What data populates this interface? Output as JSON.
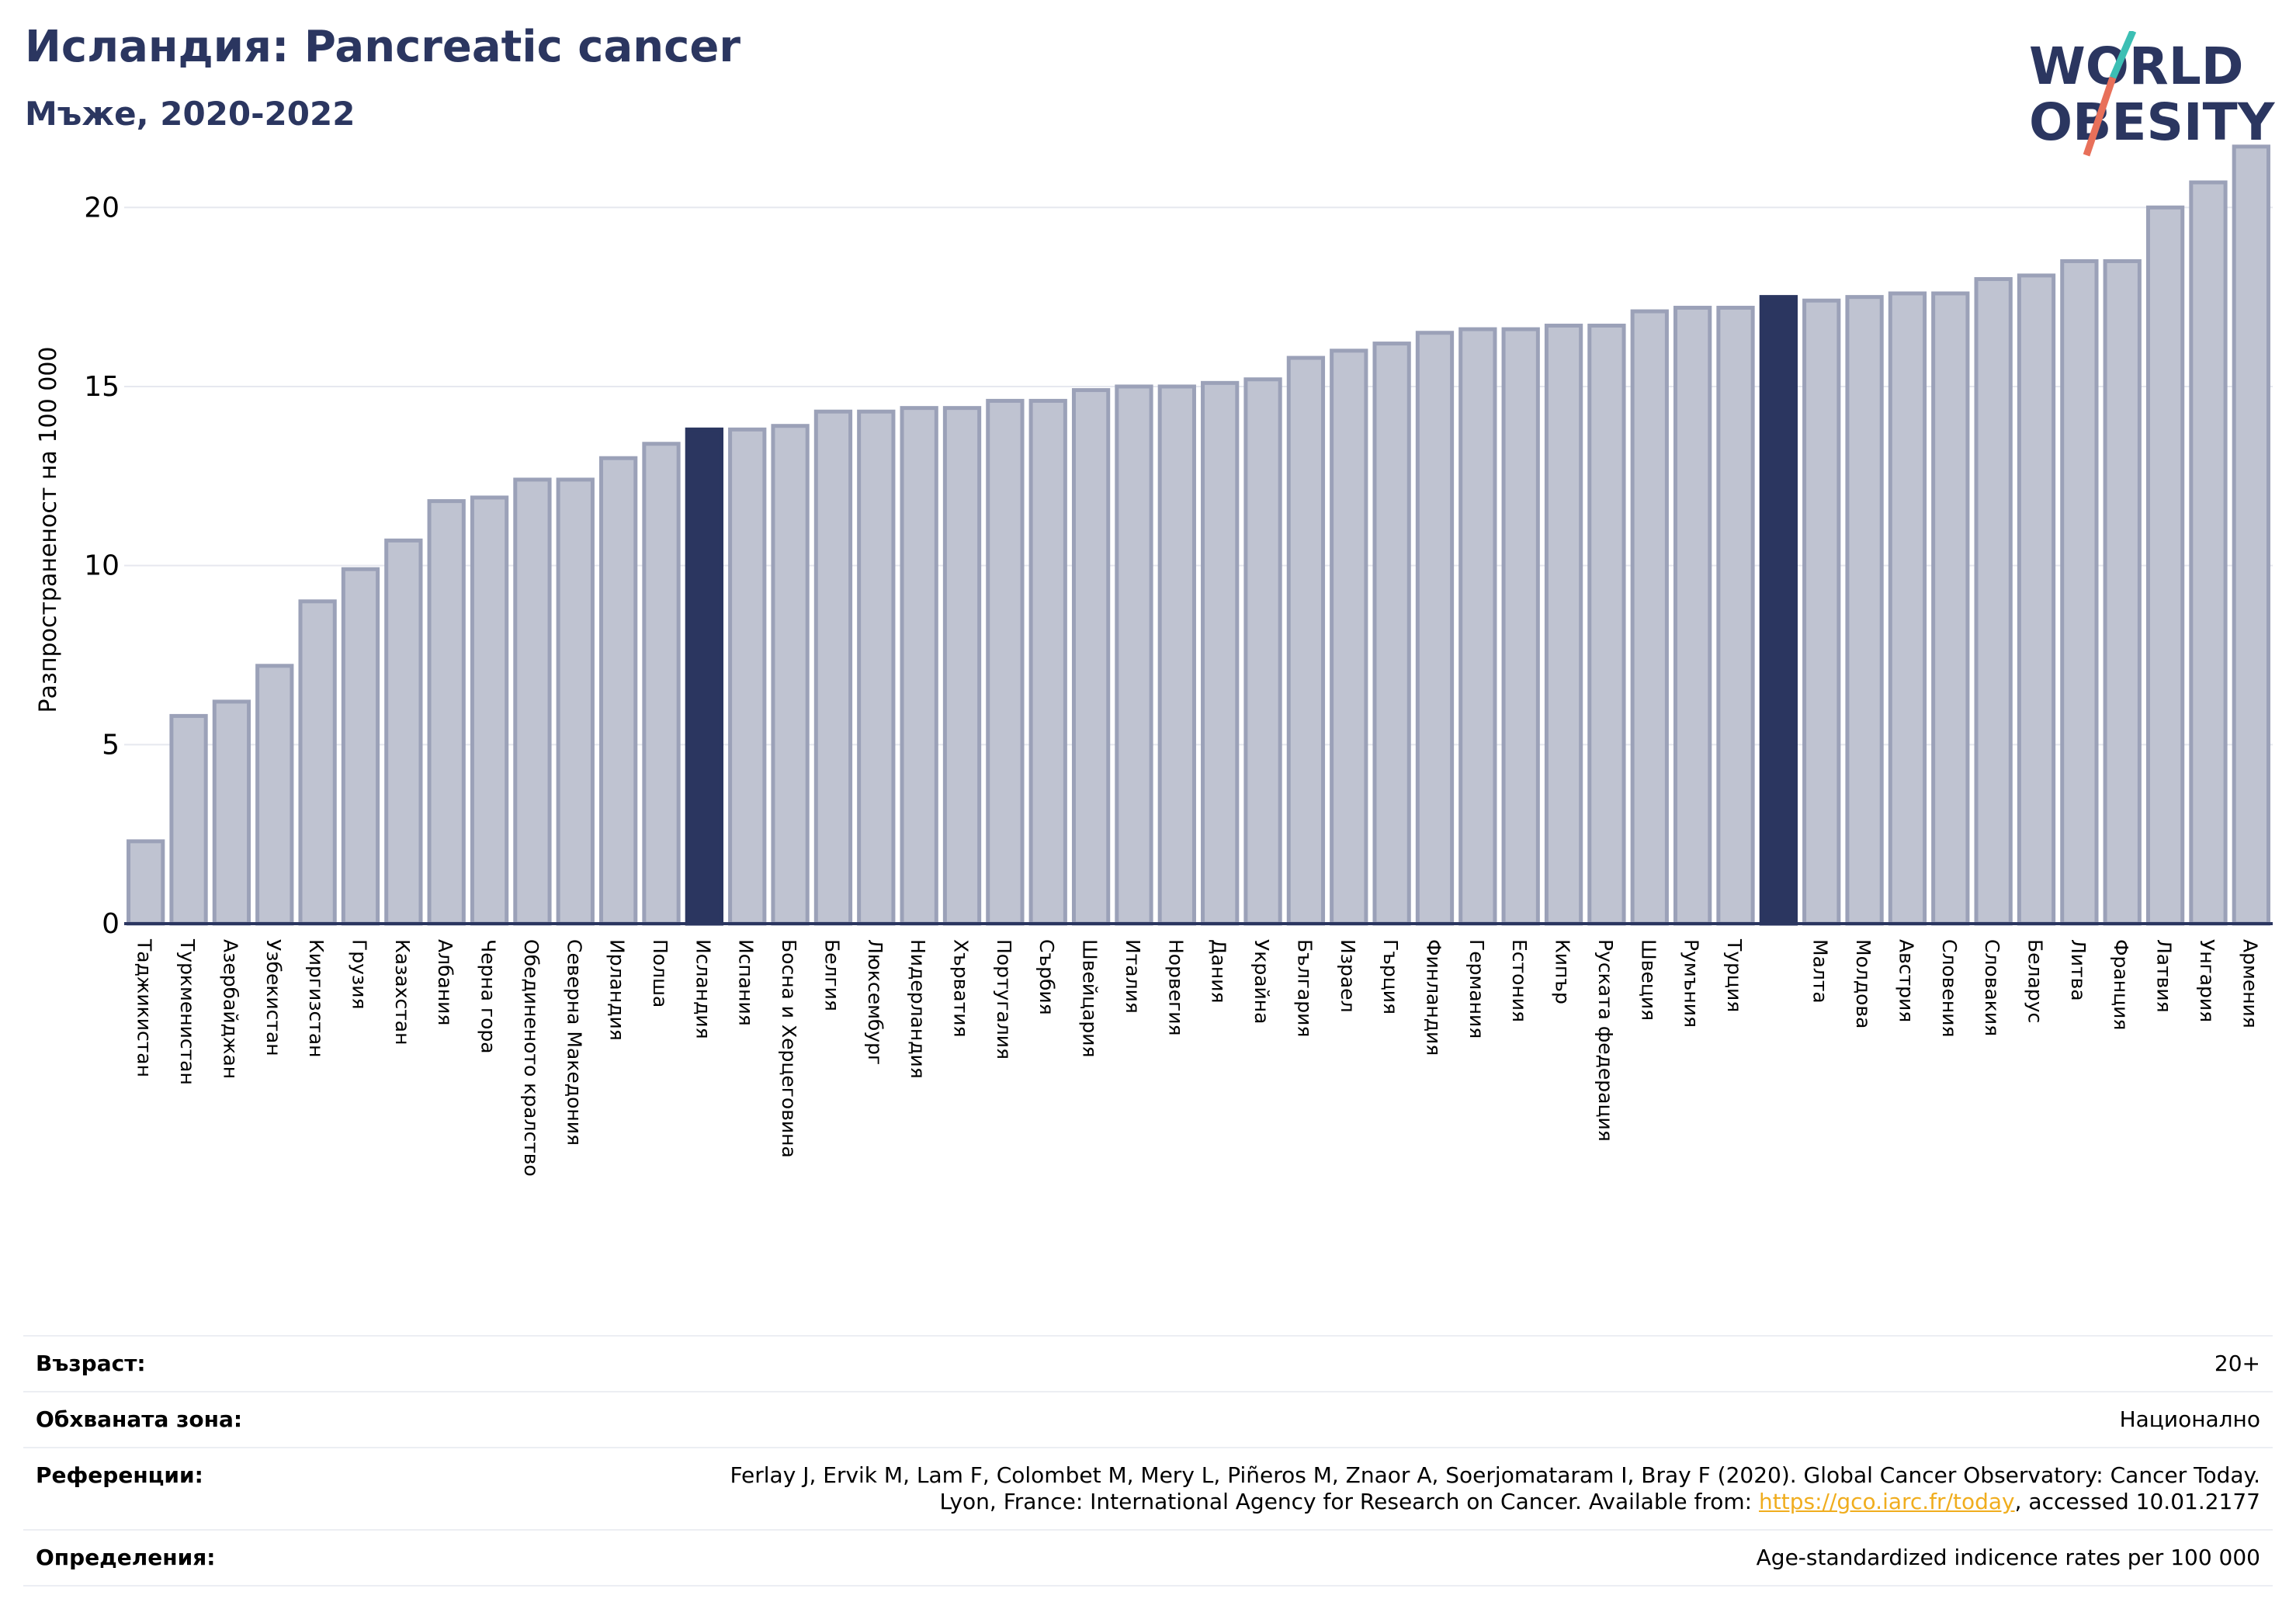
{
  "header": {
    "title": "Исландия: Pancreatic cancer",
    "subtitle": "Мъже, 2020-2022"
  },
  "logo": {
    "line1": "WORLD",
    "line2": "OBESITY",
    "colors": {
      "text": "#2b3660",
      "slash_top": "#3cbfb4",
      "slash_bottom": "#e8705a"
    }
  },
  "chart_data": {
    "type": "bar",
    "ylabel": "Разпространеност  на 100 000",
    "ylim": [
      0,
      22
    ],
    "yticks": [
      0,
      5,
      10,
      15,
      20
    ],
    "grid": true,
    "categories": [
      "Таджикистан",
      "Туркменистан",
      "Азербайджан",
      "Узбекистан",
      "Киргизстан",
      "Грузия",
      "Казахстан",
      "Албания",
      "Черна гора",
      "Обединеното кралство",
      "Северна Македония",
      "Ирландия",
      "Полша",
      "Исландия",
      "Испания",
      "Босна и Херцеговина",
      "Белгия",
      "Люксембург",
      "Нидерландия",
      "Хърватия",
      "Португалия",
      "Сърбия",
      "Швейцария",
      "Италия",
      "Норвегия",
      "Дания",
      "Украйна",
      "България",
      "Израел",
      "Гърция",
      "Финландия",
      "Германия",
      "Естония",
      "Кипър",
      "Руската федерация",
      "Швеция",
      "Румъния",
      "Турция",
      "",
      "Малта",
      "Молдова",
      "Австрия",
      "Словения",
      "Словакия",
      "Беларус",
      "Литва",
      "Франция",
      "Латвия",
      "Унгария",
      "Армения"
    ],
    "values": [
      2.3,
      5.8,
      6.2,
      7.2,
      9.0,
      9.9,
      10.7,
      11.8,
      11.9,
      12.4,
      12.4,
      13.0,
      13.4,
      13.8,
      13.8,
      13.9,
      14.3,
      14.3,
      14.4,
      14.4,
      14.6,
      14.6,
      14.9,
      15.0,
      15.0,
      15.1,
      15.2,
      15.8,
      16.0,
      16.2,
      16.5,
      16.6,
      16.6,
      16.7,
      16.7,
      17.1,
      17.2,
      17.2,
      17.5,
      17.4,
      17.5,
      17.6,
      17.6,
      18.0,
      18.1,
      18.5,
      18.5,
      20.0,
      20.7,
      21.7
    ],
    "highlight_indices": [
      13,
      38
    ],
    "colors": {
      "bar": "#bfc3d1",
      "bar_edge": "#9ba1b8",
      "highlight": "#2b3660",
      "grid": "#e6e8ef",
      "axis": "#2b3660"
    }
  },
  "meta": {
    "age_label": "Възраст:",
    "age_value": "20+",
    "coverage_label": "Обхваната зона:",
    "coverage_value": "Национално",
    "references_label": "Референции:",
    "references_line1": "Ferlay J, Ervik M, Lam F, Colombet M, Mery L, Piñeros M, Znaor A, Soerjomataram I, Bray F (2020). Global Cancer Observatory: Cancer Today.",
    "references_line2_pre": "Lyon, France: International Agency for Research on Cancer. Available from: ",
    "references_link": "https://gco.iarc.fr/today",
    "references_line2_post": ", accessed 10.01.2177",
    "definitions_label": "Определения:",
    "definitions_value": "Age-standardized indicence rates per 100 000"
  }
}
